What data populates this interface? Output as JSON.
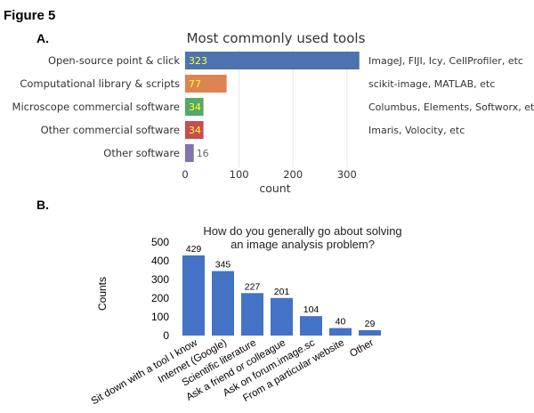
{
  "figure_title": "Figure 5",
  "panel_a_label": "A.",
  "panel_b_label": "B.",
  "colors": {
    "bar_a": [
      "#4c72b0",
      "#dd8452",
      "#55a868",
      "#c44e52",
      "#8172b3"
    ],
    "value_label_inside": "#ffff33",
    "value_label_outside": "#666666",
    "bar_b": "#4472c4",
    "grid_a": "#e6e6e6"
  },
  "chart_data": [
    {
      "type": "bar",
      "orientation": "horizontal",
      "title": "Most commonly used tools",
      "categories": [
        "Open-source point & click",
        "Computational library & scripts",
        "Microscope commercial software",
        "Other commercial software",
        "Other software"
      ],
      "values": [
        323,
        77,
        34,
        34,
        16
      ],
      "value_labels": [
        "323",
        "77",
        "34",
        "34",
        "16"
      ],
      "annotations": [
        "ImageJ, FIJI, Icy, CellProfiler, etc",
        "scikit-image, MATLAB, etc",
        "Columbus, Elements, Softworx, etc",
        "Imaris, Volocity, etc",
        ""
      ],
      "xlabel": "count",
      "ylabel": "",
      "xlim": [
        0,
        330
      ],
      "xticks": [
        0,
        100,
        200,
        300
      ],
      "grid": "vertical"
    },
    {
      "type": "bar",
      "title_lines": [
        "How do you generally go about solving",
        "an image analysis problem?"
      ],
      "categories": [
        "Sit down with a tool I know",
        "Internet (Google)",
        "Scientific literature",
        "Ask a friend or colleague",
        "Ask on forum.image.sc",
        "From a particular website",
        "Other"
      ],
      "values": [
        429,
        345,
        227,
        201,
        104,
        40,
        29
      ],
      "value_labels": [
        "429",
        "345",
        "227",
        "201",
        "104",
        "40",
        "29"
      ],
      "xlabel": "",
      "ylabel": "Counts",
      "ylim": [
        0,
        500
      ],
      "yticks": [
        0,
        100,
        200,
        300,
        400,
        500
      ],
      "grid": "off"
    }
  ]
}
